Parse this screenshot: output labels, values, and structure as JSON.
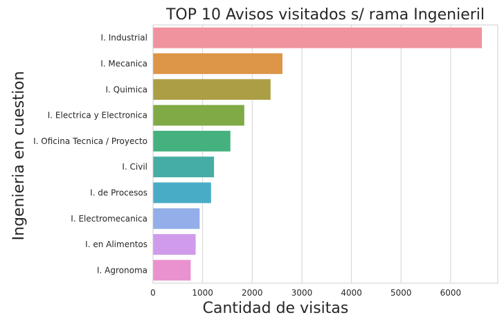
{
  "chart_data": {
    "type": "bar",
    "orientation": "horizontal",
    "title": "TOP 10 Avisos visitados s/ rama Ingenieril",
    "xlabel": "Cantidad de visitas",
    "ylabel": "Ingenieria en cuestion",
    "xlim": [
      0,
      6950
    ],
    "xticks": [
      "0",
      "1000",
      "2000",
      "3000",
      "4000",
      "5000",
      "6000"
    ],
    "grid": "vertical",
    "legend": "none",
    "categories": [
      "I. Industrial",
      "I. Mecanica",
      "I. Quimica",
      "I. Electrica y Electronica",
      "I. Oficina Tecnica / Proyecto",
      "I. Civil",
      "I. de Procesos",
      "I. Electromecanica",
      "I. en Alimentos",
      "I. Agronoma"
    ],
    "values": [
      6630,
      2610,
      2370,
      1840,
      1560,
      1230,
      1170,
      940,
      860,
      760
    ],
    "colors": [
      "#f0939f",
      "#dd9548",
      "#ab9e45",
      "#80aa45",
      "#45b17f",
      "#46ada4",
      "#49acc7",
      "#93aee8",
      "#cf9bea",
      "#ea91cf"
    ]
  }
}
